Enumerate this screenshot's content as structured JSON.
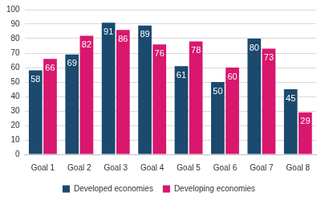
{
  "chart_data": {
    "type": "bar",
    "categories": [
      "Goal 1",
      "Goal 2",
      "Goal 3",
      "Goal 4",
      "Goal 5",
      "Goal 6",
      "Goal 7",
      "Goal 8"
    ],
    "series": [
      {
        "name": "Developed economies",
        "color": "#1b4a6e",
        "values": [
          58,
          69,
          91,
          89,
          61,
          50,
          80,
          45
        ]
      },
      {
        "name": "Developing economies",
        "color": "#d9176f",
        "values": [
          66,
          82,
          86,
          76,
          78,
          60,
          73,
          29
        ]
      }
    ],
    "ylim": [
      0,
      100
    ],
    "yticks": [
      0,
      10,
      20,
      30,
      40,
      50,
      60,
      70,
      80,
      90,
      100
    ],
    "grid": true,
    "legend": "bottom",
    "data_labels": true
  }
}
